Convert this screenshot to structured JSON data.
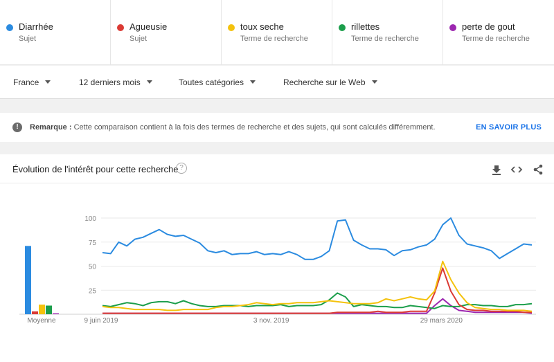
{
  "terms": [
    {
      "name": "Diarrhée",
      "kind": "Sujet",
      "color": "#2b8be0"
    },
    {
      "name": "Agueusie",
      "kind": "Sujet",
      "color": "#db3a34"
    },
    {
      "name": "toux seche",
      "kind": "Terme de recherche",
      "color": "#f4c20d"
    },
    {
      "name": "rillettes",
      "kind": "Terme de recherche",
      "color": "#1b9e4b"
    },
    {
      "name": "perte de gout",
      "kind": "Terme de recherche",
      "color": "#9c27b0"
    }
  ],
  "filters": {
    "country": "France",
    "period": "12 derniers mois",
    "category": "Toutes catégories",
    "search_type": "Recherche sur le Web"
  },
  "notice": {
    "label": "Remarque :",
    "text": "Cette comparaison contient à la fois des termes de recherche et des sujets, qui sont calculés différemment.",
    "link": "EN SAVOIR PLUS"
  },
  "chart_section": {
    "title": "Évolution de l'intérêt pour cette recherche",
    "help_glyph": "?",
    "average_label": "Moyenne"
  },
  "chart_data": {
    "type": "line",
    "y_ticks": [
      "100",
      "75",
      "50",
      "25"
    ],
    "ylim": [
      0,
      100
    ],
    "x_tick_labels": [
      {
        "label": "9 juin 2019",
        "index": 0
      },
      {
        "label": "3 nov. 2019",
        "index": 21
      },
      {
        "label": "29 mars 2020",
        "index": 42
      }
    ],
    "averages": [
      71,
      3,
      10,
      9,
      1
    ],
    "series": [
      {
        "name": "Diarrhée",
        "values": [
          64,
          63,
          75,
          71,
          78,
          80,
          84,
          88,
          83,
          81,
          82,
          78,
          74,
          66,
          64,
          66,
          62,
          63,
          63,
          65,
          62,
          63,
          62,
          65,
          62,
          57,
          57,
          60,
          66,
          97,
          98,
          77,
          72,
          68,
          68,
          67,
          61,
          66,
          67,
          70,
          72,
          78,
          93,
          100,
          82,
          73,
          71,
          69,
          66,
          58,
          63,
          68,
          73,
          72
        ]
      },
      {
        "name": "Agueusie",
        "values": [
          1,
          1,
          1,
          1,
          1,
          1,
          1,
          1,
          1,
          1,
          1,
          1,
          1,
          1,
          1,
          1,
          1,
          1,
          1,
          1,
          1,
          1,
          1,
          1,
          1,
          1,
          1,
          1,
          1,
          2,
          2,
          2,
          2,
          2,
          3,
          2,
          2,
          2,
          3,
          3,
          3,
          22,
          48,
          24,
          10,
          5,
          4,
          4,
          3,
          3,
          3,
          3,
          2,
          2
        ]
      },
      {
        "name": "toux seche",
        "values": [
          8,
          7,
          7,
          6,
          5,
          5,
          5,
          5,
          4,
          4,
          5,
          5,
          5,
          5,
          7,
          8,
          8,
          9,
          10,
          12,
          11,
          10,
          11,
          11,
          12,
          12,
          12,
          13,
          14,
          13,
          12,
          11,
          11,
          11,
          12,
          16,
          14,
          16,
          18,
          16,
          15,
          24,
          55,
          36,
          22,
          12,
          7,
          6,
          5,
          5,
          4,
          4,
          4,
          3
        ]
      },
      {
        "name": "rillettes",
        "values": [
          9,
          8,
          10,
          12,
          11,
          9,
          12,
          13,
          13,
          11,
          14,
          11,
          9,
          8,
          8,
          9,
          9,
          9,
          8,
          9,
          9,
          9,
          10,
          8,
          9,
          9,
          9,
          10,
          15,
          22,
          18,
          8,
          10,
          9,
          8,
          8,
          7,
          7,
          9,
          8,
          7,
          6,
          9,
          8,
          8,
          10,
          10,
          9,
          9,
          8,
          8,
          10,
          10,
          11
        ]
      },
      {
        "name": "perte de gout",
        "values": [
          1,
          1,
          1,
          1,
          1,
          1,
          1,
          1,
          1,
          1,
          1,
          1,
          1,
          1,
          1,
          1,
          1,
          1,
          1,
          1,
          1,
          1,
          1,
          1,
          1,
          1,
          1,
          1,
          1,
          1,
          1,
          1,
          1,
          1,
          1,
          1,
          1,
          1,
          1,
          1,
          1,
          9,
          16,
          9,
          4,
          3,
          2,
          2,
          2,
          2,
          2,
          2,
          2,
          1
        ]
      }
    ]
  }
}
